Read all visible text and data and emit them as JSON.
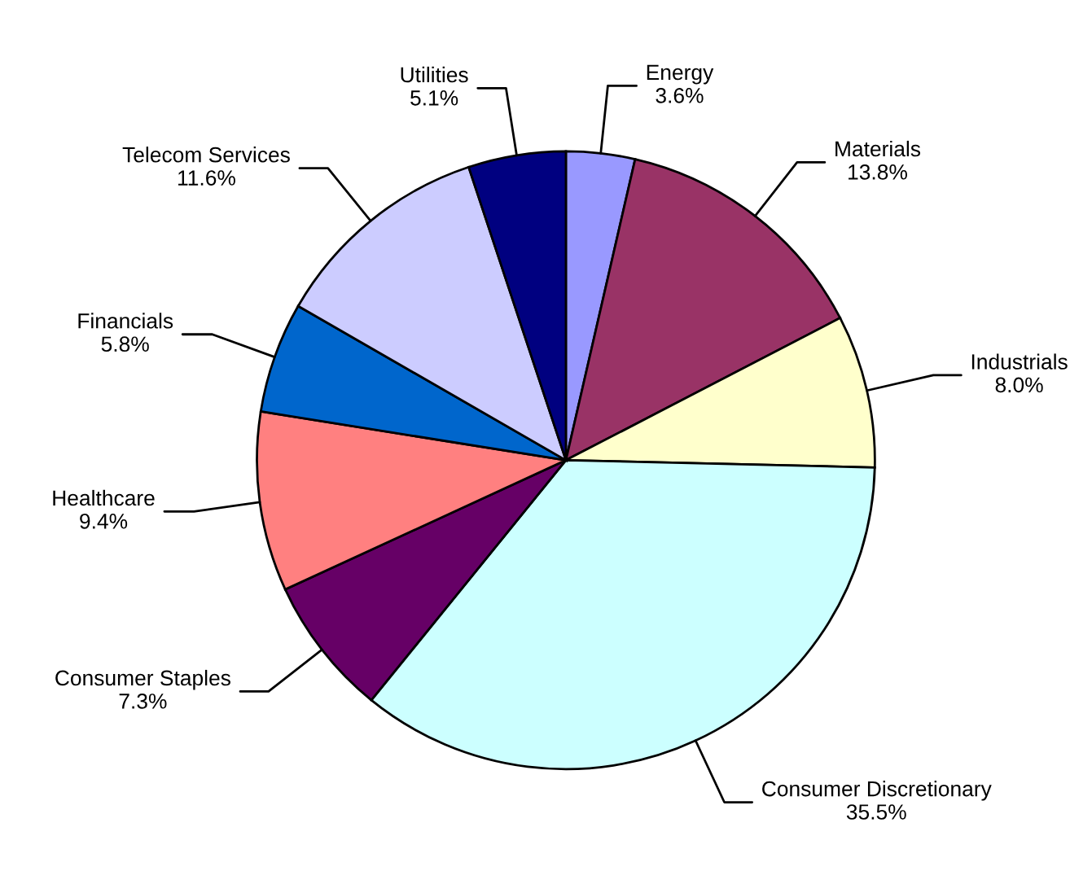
{
  "chart_data": {
    "type": "pie",
    "categories": [
      "Energy",
      "Materials",
      "Industrials",
      "Consumer Discretionary",
      "Consumer Staples",
      "Healthcare",
      "Financials",
      "Telecom Services",
      "Utilities"
    ],
    "values": [
      3.6,
      13.8,
      8.0,
      35.5,
      7.3,
      9.4,
      5.8,
      11.6,
      5.1
    ],
    "value_labels": [
      "3.6%",
      "13.8%",
      "8.0%",
      "35.5%",
      "7.3%",
      "9.4%",
      "5.8%",
      "11.6%",
      "5.1%"
    ],
    "colors": [
      "#9999ff",
      "#993366",
      "#ffffcc",
      "#ccffff",
      "#660066",
      "#ff8080",
      "#0066cc",
      "#ccccff",
      "#000080"
    ],
    "legend": false
  }
}
